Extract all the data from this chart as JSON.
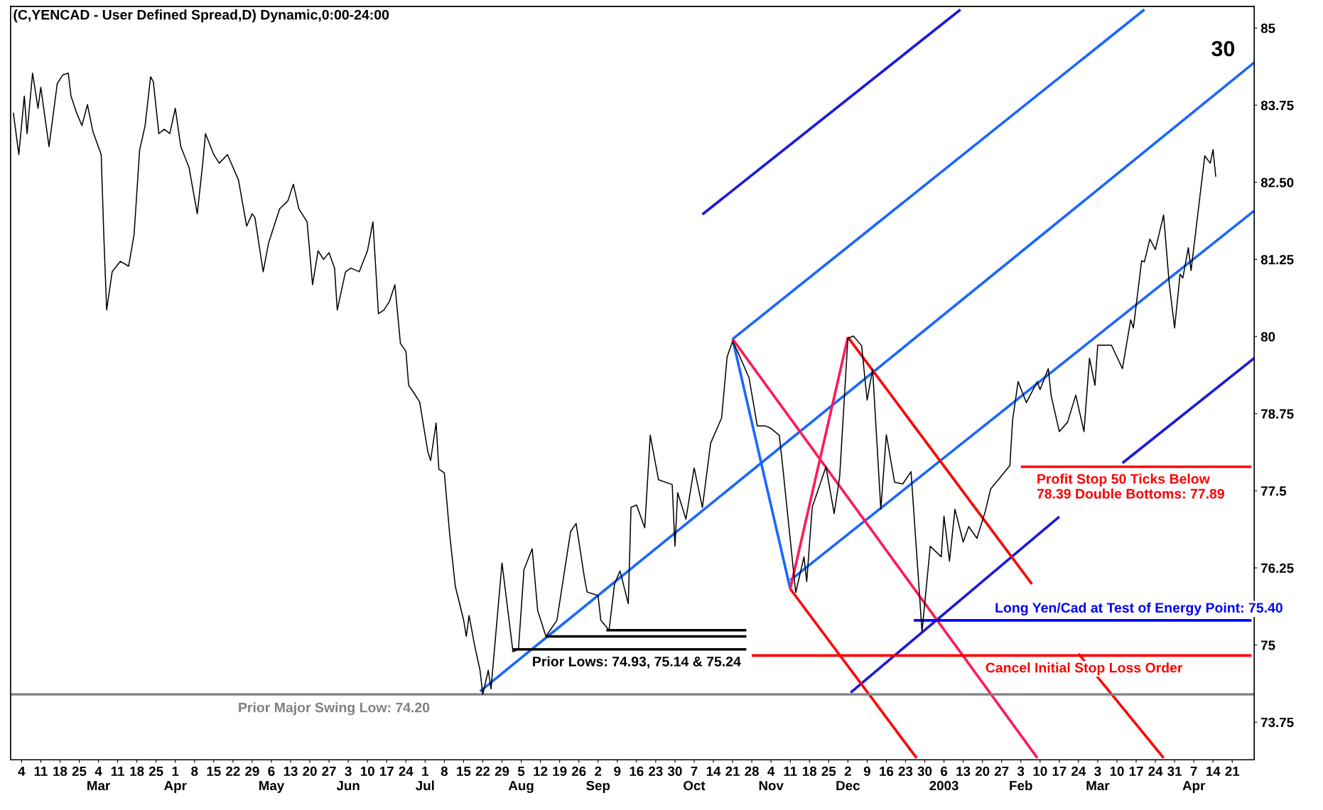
{
  "chart_data": {
    "type": "line",
    "title": "(C,YENCAD - User Defined Spread,D) Dynamic,0:00-24:00",
    "xlim": [
      "2002-01-31",
      "2003-04-29"
    ],
    "xticks": [
      {
        "value": "2002-02-04",
        "label": "4"
      },
      {
        "value": "2002-02-11",
        "label": "11"
      },
      {
        "value": "2002-02-18",
        "label": "18"
      },
      {
        "value": "2002-02-25",
        "label": "25"
      },
      {
        "value": "2002-03-04",
        "label": "4\nMar"
      },
      {
        "value": "2002-03-11",
        "label": "11"
      },
      {
        "value": "2002-03-18",
        "label": "18"
      },
      {
        "value": "2002-03-25",
        "label": "25"
      },
      {
        "value": "2002-04-01",
        "label": "1\nApr"
      },
      {
        "value": "2002-04-08",
        "label": "8"
      },
      {
        "value": "2002-04-15",
        "label": "15"
      },
      {
        "value": "2002-04-22",
        "label": "22"
      },
      {
        "value": "2002-04-29",
        "label": "29"
      },
      {
        "value": "2002-05-06",
        "label": "6\nMay"
      },
      {
        "value": "2002-05-13",
        "label": "13"
      },
      {
        "value": "2002-05-20",
        "label": "20"
      },
      {
        "value": "2002-05-27",
        "label": "27"
      },
      {
        "value": "2002-06-03",
        "label": "3\nJun"
      },
      {
        "value": "2002-06-10",
        "label": "10"
      },
      {
        "value": "2002-06-17",
        "label": "17"
      },
      {
        "value": "2002-06-24",
        "label": "24"
      },
      {
        "value": "2002-07-01",
        "label": "1\nJul"
      },
      {
        "value": "2002-07-08",
        "label": "8"
      },
      {
        "value": "2002-07-15",
        "label": "15"
      },
      {
        "value": "2002-07-22",
        "label": "22"
      },
      {
        "value": "2002-07-29",
        "label": "29"
      },
      {
        "value": "2002-08-05",
        "label": "5\nAug"
      },
      {
        "value": "2002-08-12",
        "label": "12"
      },
      {
        "value": "2002-08-19",
        "label": "19"
      },
      {
        "value": "2002-08-26",
        "label": "26"
      },
      {
        "value": "2002-09-02",
        "label": "2\nSep"
      },
      {
        "value": "2002-09-09",
        "label": "9"
      },
      {
        "value": "2002-09-16",
        "label": "16"
      },
      {
        "value": "2002-09-23",
        "label": "23"
      },
      {
        "value": "2002-09-30",
        "label": "30"
      },
      {
        "value": "2002-10-07",
        "label": "7\nOct"
      },
      {
        "value": "2002-10-14",
        "label": "14"
      },
      {
        "value": "2002-10-21",
        "label": "21"
      },
      {
        "value": "2002-10-28",
        "label": "28"
      },
      {
        "value": "2002-11-04",
        "label": "4\nNov"
      },
      {
        "value": "2002-11-11",
        "label": "11"
      },
      {
        "value": "2002-11-18",
        "label": "18"
      },
      {
        "value": "2002-11-25",
        "label": "25"
      },
      {
        "value": "2002-12-02",
        "label": "2\nDec"
      },
      {
        "value": "2002-12-09",
        "label": "9"
      },
      {
        "value": "2002-12-16",
        "label": "16"
      },
      {
        "value": "2002-12-23",
        "label": "23"
      },
      {
        "value": "2002-12-30",
        "label": "30"
      },
      {
        "value": "2003-01-06",
        "label": "6\n2003"
      },
      {
        "value": "2003-01-13",
        "label": "13"
      },
      {
        "value": "2003-01-20",
        "label": "20"
      },
      {
        "value": "2003-01-27",
        "label": "27"
      },
      {
        "value": "2003-02-03",
        "label": "3\nFeb"
      },
      {
        "value": "2003-02-10",
        "label": "10"
      },
      {
        "value": "2003-02-17",
        "label": "17"
      },
      {
        "value": "2003-02-24",
        "label": "24"
      },
      {
        "value": "2003-03-03",
        "label": "3\nMar"
      },
      {
        "value": "2003-03-10",
        "label": "10"
      },
      {
        "value": "2003-03-17",
        "label": "17"
      },
      {
        "value": "2003-03-24",
        "label": "24"
      },
      {
        "value": "2003-03-31",
        "label": "31"
      },
      {
        "value": "2003-04-07",
        "label": "7\nApr"
      },
      {
        "value": "2003-04-14",
        "label": "14"
      },
      {
        "value": "2003-04-21",
        "label": "21"
      }
    ],
    "ylim": [
      73.14,
      85.35
    ],
    "yticks": [
      73.75,
      75,
      76.25,
      77.5,
      78.75,
      80,
      81.25,
      {
        "value": 82.5,
        "label": "82.50"
      },
      83.75,
      85
    ],
    "series": [
      {
        "color": "#000000",
        "x": [
          "2002-02-01",
          "2002-02-03",
          "2002-02-05",
          "2002-02-06",
          "2002-02-08",
          "2002-02-10",
          "2002-02-11",
          "2002-02-14",
          "2002-02-16",
          "2002-02-17",
          "2002-02-19",
          "2002-02-21",
          "2002-02-22",
          "2002-02-24",
          "2002-02-26",
          "2002-02-28",
          "2002-03-02",
          "2002-03-05",
          "2002-03-06",
          "2002-03-07",
          "2002-03-09",
          "2002-03-12",
          "2002-03-15",
          "2002-03-17",
          "2002-03-19",
          "2002-03-21",
          "2002-03-23",
          "2002-03-24",
          "2002-03-26",
          "2002-03-28",
          "2002-03-30",
          "2002-04-01",
          "2002-04-03",
          "2002-04-06",
          "2002-04-09",
          "2002-04-11",
          "2002-04-12",
          "2002-04-15",
          "2002-04-17",
          "2002-04-20",
          "2002-04-24",
          "2002-04-27",
          "2002-04-29",
          "2002-04-30",
          "2002-05-03",
          "2002-05-05",
          "2002-05-09",
          "2002-05-12",
          "2002-05-14",
          "2002-05-16",
          "2002-05-19",
          "2002-05-21",
          "2002-05-23",
          "2002-05-25",
          "2002-05-27",
          "2002-05-29",
          "2002-05-30",
          "2002-06-02",
          "2002-06-04",
          "2002-06-07",
          "2002-06-10",
          "2002-06-12",
          "2002-06-14",
          "2002-06-16",
          "2002-06-18",
          "2002-06-20",
          "2002-06-22",
          "2002-06-24",
          "2002-06-25",
          "2002-06-27",
          "2002-06-29",
          "2002-07-01",
          "2002-07-02",
          "2002-07-03",
          "2002-07-05",
          "2002-07-06",
          "2002-07-08",
          "2002-07-10",
          "2002-07-12",
          "2002-07-15",
          "2002-07-16",
          "2002-07-17",
          "2002-07-19",
          "2002-07-21",
          "2002-07-22",
          "2002-07-24",
          "2002-07-25",
          "2002-07-29",
          "2002-08-02",
          "2002-08-04",
          "2002-08-06",
          "2002-08-09",
          "2002-08-11",
          "2002-08-14",
          "2002-08-18",
          "2002-08-23",
          "2002-08-25",
          "2002-08-28",
          "2002-08-29",
          "2002-09-02",
          "2002-09-03",
          "2002-09-06",
          "2002-09-08",
          "2002-09-10",
          "2002-09-13",
          "2002-09-14",
          "2002-09-16",
          "2002-09-19",
          "2002-09-21",
          "2002-09-24",
          "2002-09-29",
          "2002-09-30",
          "2002-10-01",
          "2002-10-04",
          "2002-10-07",
          "2002-10-10",
          "2002-10-13",
          "2002-10-17",
          "2002-10-19",
          "2002-10-21",
          "2002-10-23",
          "2002-10-27",
          "2002-10-30",
          "2002-11-02",
          "2002-11-04",
          "2002-11-07",
          "2002-11-08",
          "2002-11-13",
          "2002-11-16",
          "2002-11-17",
          "2002-11-19",
          "2002-11-24",
          "2002-11-27",
          "2002-11-29",
          "2002-12-02",
          "2002-12-04",
          "2002-12-07",
          "2002-12-09",
          "2002-12-11",
          "2002-12-14",
          "2002-12-16",
          "2002-12-19",
          "2002-12-22",
          "2002-12-25",
          "2002-12-29",
          "2003-01-01",
          "2003-01-05",
          "2003-01-06",
          "2003-01-08",
          "2003-01-10",
          "2003-01-13",
          "2003-01-15",
          "2003-01-18",
          "2003-01-21",
          "2003-01-23",
          "2003-01-26",
          "2003-01-30",
          "2003-01-31",
          "2003-02-02",
          "2003-02-05",
          "2003-02-09",
          "2003-02-10",
          "2003-02-13",
          "2003-02-14",
          "2003-02-17",
          "2003-02-20",
          "2003-02-23",
          "2003-02-26",
          "2003-02-28",
          "2003-03-02",
          "2003-03-03",
          "2003-03-08",
          "2003-03-12",
          "2003-03-15",
          "2003-03-16",
          "2003-03-19",
          "2003-03-20",
          "2003-03-22",
          "2003-03-24",
          "2003-03-27",
          "2003-03-29",
          "2003-03-31",
          "2003-04-02",
          "2003-04-03",
          "2003-04-05",
          "2003-04-06",
          "2003-04-11",
          "2003-04-13",
          "2003-04-14",
          "2003-04-15"
        ],
        "values": [
          83.63,
          82.95,
          83.9,
          83.29,
          84.27,
          83.7,
          84.04,
          83.08,
          83.76,
          84.1,
          84.24,
          84.27,
          83.9,
          83.63,
          83.42,
          83.76,
          83.32,
          82.95,
          81.59,
          80.43,
          81.05,
          81.22,
          81.14,
          81.66,
          83.02,
          83.42,
          84.21,
          84.13,
          83.29,
          83.36,
          83.29,
          83.7,
          83.08,
          82.74,
          81.99,
          82.81,
          83.29,
          82.95,
          82.81,
          82.95,
          82.54,
          81.79,
          81.99,
          81.93,
          81.05,
          81.52,
          82.07,
          82.2,
          82.47,
          82.07,
          81.86,
          80.84,
          81.39,
          81.25,
          81.36,
          81.11,
          80.43,
          81.05,
          81.11,
          81.05,
          81.39,
          81.86,
          80.37,
          80.43,
          80.57,
          80.84,
          79.89,
          79.76,
          79.21,
          79.08,
          78.94,
          78.4,
          78.13,
          77.99,
          78.6,
          77.85,
          77.79,
          76.77,
          75.95,
          75.41,
          75.14,
          75.48,
          75.0,
          74.59,
          74.2,
          74.59,
          74.29,
          76.33,
          74.89,
          74.93,
          76.22,
          76.56,
          75.56,
          75.14,
          75.4,
          76.84,
          76.97,
          76.1,
          75.86,
          75.8,
          75.4,
          75.24,
          75.99,
          76.2,
          75.67,
          77.23,
          77.27,
          76.9,
          78.4,
          77.68,
          77.6,
          76.6,
          77.47,
          77.04,
          77.87,
          77.23,
          78.27,
          78.68,
          79.67,
          79.92,
          79.74,
          79.33,
          78.55,
          78.55,
          78.51,
          78.4,
          78.0,
          75.85,
          76.43,
          76.03,
          77.23,
          77.89,
          77.13,
          77.73,
          79.97,
          80.01,
          79.85,
          78.97,
          79.47,
          77.2,
          78.41,
          77.64,
          77.61,
          77.81,
          75.22,
          76.6,
          76.43,
          77.09,
          76.36,
          77.2,
          76.67,
          76.92,
          76.73,
          77.16,
          77.53,
          77.69,
          77.91,
          78.65,
          79.27,
          78.93,
          79.27,
          79.14,
          79.48,
          79.05,
          78.46,
          78.61,
          79.05,
          78.46,
          79.65,
          79.21,
          79.86,
          79.86,
          79.48,
          80.27,
          80.14,
          81.23,
          81.21,
          81.58,
          81.41,
          81.97,
          80.88,
          80.14,
          81.01,
          80.95,
          81.44,
          81.07,
          82.93,
          82.81,
          83.03,
          82.59
        ]
      },
      {
        "type": "line",
        "color": "#1a1adc",
        "x": [
          "2002-10-10",
          "2003-01-12"
        ],
        "values": [
          81.98,
          85.3
        ]
      },
      {
        "type": "line",
        "color": "#1a66ff",
        "x": [
          "2002-10-21",
          "2003-03-20"
        ],
        "values": [
          79.96,
          85.3
        ]
      },
      {
        "type": "line",
        "color": "#1a66ff",
        "x": [
          "2002-07-21",
          "2003-04-29"
        ],
        "values": [
          74.25,
          84.44
        ]
      },
      {
        "type": "line",
        "color": "#1a66ff",
        "x": [
          "2002-11-11",
          "2003-04-29"
        ],
        "values": [
          76.05,
          82.04
        ]
      },
      {
        "type": "line",
        "color": "#1a1adc",
        "x": [
          "2002-12-03",
          "2003-02-17",
          "2003-03-01",
          "2003-03-12",
          "2003-04-29"
        ],
        "values": [
          74.23,
          77.08,
          null,
          77.95,
          79.65
        ]
      },
      {
        "type": "line",
        "color": "#1a66ff",
        "x": [
          "2002-10-21",
          "2002-11-11"
        ],
        "values": [
          79.96,
          75.91
        ]
      },
      {
        "type": "line",
        "color": "#ff1a55",
        "x": [
          "2002-11-11",
          "2002-12-02"
        ],
        "values": [
          75.91,
          79.99
        ]
      },
      {
        "type": "line",
        "color": "#ff1a55",
        "x": [
          "2002-10-21",
          "2003-02-09"
        ],
        "values": [
          79.96,
          73.17
        ]
      },
      {
        "type": "line",
        "color": "#ff0000",
        "x": [
          "2002-11-11",
          "2002-12-27"
        ],
        "values": [
          75.91,
          73.17
        ]
      },
      {
        "type": "line",
        "color": "#ff0000",
        "x": [
          "2002-12-02",
          "2003-02-07",
          "2003-02-15",
          "2003-02-24",
          "2003-03-27"
        ],
        "values": [
          79.99,
          75.99,
          null,
          74.86,
          73.17
        ]
      },
      {
        "type": "line",
        "color": "#000000",
        "x": [
          "2002-08-02",
          "2002-10-26"
        ],
        "values": [
          74.93,
          74.93
        ]
      },
      {
        "type": "line",
        "color": "#000000",
        "x": [
          "2002-08-14",
          "2002-10-26"
        ],
        "values": [
          75.14,
          75.14
        ]
      },
      {
        "type": "line",
        "color": "#000000",
        "x": [
          "2002-09-05",
          "2002-10-26"
        ],
        "values": [
          75.24,
          75.24
        ]
      },
      {
        "type": "line",
        "color": "#ff0000",
        "x": [
          "2002-10-28",
          "2003-04-28"
        ],
        "values": [
          74.83,
          74.83
        ]
      },
      {
        "type": "line",
        "color": "#0000ff",
        "x": [
          "2002-12-26",
          "2003-04-28"
        ],
        "values": [
          75.4,
          75.4
        ]
      },
      {
        "type": "line",
        "color": "#ff0000",
        "x": [
          "2003-02-03",
          "2003-04-28"
        ],
        "values": [
          77.89,
          77.89
        ]
      }
    ],
    "ref_lines": [
      {
        "axis": "y",
        "value": 74.2,
        "label": "Prior Major Swing Low: 74.20",
        "color": "#808080"
      }
    ],
    "annotations": [
      "30",
      {
        "text": "Prior Lows: 74.93, 75.14 & 75.24",
        "x": "2002-09-16",
        "y": 74.93
      },
      {
        "text": "Long Yen/Cad at Test of Energy Point: 75.40",
        "x": "2003-03-18",
        "y": 75.4
      },
      {
        "text": "Cancel Initial Stop Loss Order",
        "x": "2003-02-26",
        "y": 74.83
      },
      {
        "text": "Profit Stop 50 Ticks Below\n78.39 Double Bottoms: 77.89",
        "x": "2003-03-15",
        "y": 77.89
      }
    ]
  }
}
